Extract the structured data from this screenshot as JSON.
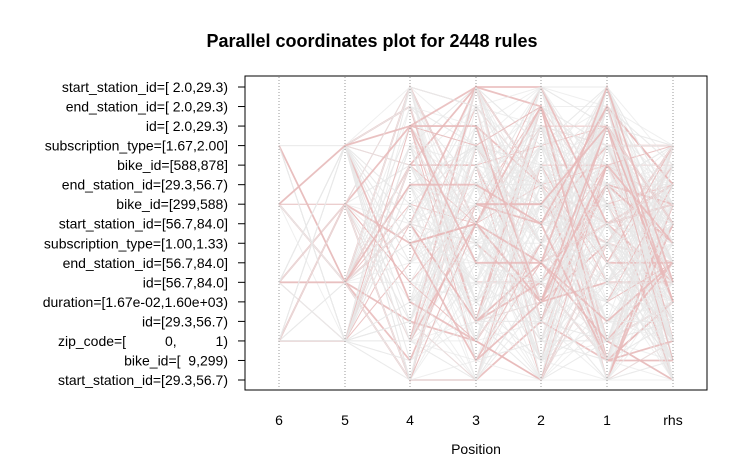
{
  "chart_data": {
    "type": "parallel-coordinates",
    "title": "Parallel coordinates plot for 2448 rules",
    "xlabel": "Position",
    "x_positions": [
      "6",
      "5",
      "4",
      "3",
      "2",
      "1",
      "rhs"
    ],
    "y_items": [
      "start_station_id=[ 2.0,29.3)",
      "end_station_id=[ 2.0,29.3)",
      "id=[ 2.0,29.3)",
      "subscription_type=[1.67,2.00]",
      "bike_id=[588,878]",
      "end_station_id=[29.3,56.7)",
      "bike_id=[299,588)",
      "start_station_id=[56.7,84.0]",
      "subscription_type=[1.00,1.33)",
      "end_station_id=[56.7,84.0]",
      "id=[56.7,84.0]",
      "duration=[1.67e-02,1.60e+03)",
      "id=[29.3,56.7)",
      "zip_code=[          0,          1)",
      "bike_id=[  9,299)",
      "start_station_id=[29.3,56.7)"
    ],
    "grid": true,
    "grid_style": "dotted vertical lines at each position",
    "colors": {
      "low_lift": "#e8e8e8",
      "high_lift": "#e8b8b8"
    }
  }
}
